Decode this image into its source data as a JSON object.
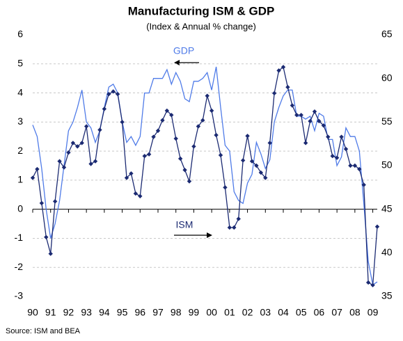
{
  "chart_data": {
    "type": "line",
    "title": "Manufacturing ISM & GDP",
    "subtitle": "(Index & Annual % change)",
    "source": "Source:  ISM and BEA",
    "x": [
      1990,
      1990.25,
      1990.5,
      1990.75,
      1991,
      1991.25,
      1991.5,
      1991.75,
      1992,
      1992.25,
      1992.5,
      1992.75,
      1993,
      1993.25,
      1993.5,
      1993.75,
      1994,
      1994.25,
      1994.5,
      1994.75,
      1995,
      1995.25,
      1995.5,
      1995.75,
      1996,
      1996.25,
      1996.5,
      1996.75,
      1997,
      1997.25,
      1997.5,
      1997.75,
      1998,
      1998.25,
      1998.5,
      1998.75,
      1999,
      1999.25,
      1999.5,
      1999.75,
      2000,
      2000.25,
      2000.5,
      2000.75,
      2001,
      2001.25,
      2001.5,
      2001.75,
      2002,
      2002.25,
      2002.5,
      2002.75,
      2003,
      2003.25,
      2003.5,
      2003.75,
      2004,
      2004.25,
      2004.5,
      2004.75,
      2005,
      2005.25,
      2005.5,
      2005.75,
      2006,
      2006.25,
      2006.5,
      2006.75,
      2007,
      2007.25,
      2007.5,
      2007.75,
      2008,
      2008.25,
      2008.5,
      2008.75,
      2009,
      2009.25
    ],
    "xlim": [
      1990,
      2009.25
    ],
    "xticks": [
      {
        "value": 1990,
        "label": "90"
      },
      {
        "value": 1991,
        "label": "91"
      },
      {
        "value": 1992,
        "label": "92"
      },
      {
        "value": 1993,
        "label": "93"
      },
      {
        "value": 1994,
        "label": "94"
      },
      {
        "value": 1995,
        "label": "95"
      },
      {
        "value": 1996,
        "label": "96"
      },
      {
        "value": 1997,
        "label": "97"
      },
      {
        "value": 1998,
        "label": "98"
      },
      {
        "value": 1999,
        "label": "99"
      },
      {
        "value": 2000,
        "label": "00"
      },
      {
        "value": 2001,
        "label": "01"
      },
      {
        "value": 2002,
        "label": "02"
      },
      {
        "value": 2003,
        "label": "03"
      },
      {
        "value": 2004,
        "label": "04"
      },
      {
        "value": 2005,
        "label": "05"
      },
      {
        "value": 2006,
        "label": "06"
      },
      {
        "value": 2007,
        "label": "07"
      },
      {
        "value": 2008,
        "label": "08"
      },
      {
        "value": 2009,
        "label": "09"
      }
    ],
    "ylim": [
      -3,
      6
    ],
    "yticks": [
      -3,
      -2,
      -1,
      0,
      1,
      2,
      3,
      4,
      5,
      6
    ],
    "y2lim": [
      35,
      65
    ],
    "y2ticks": [
      35,
      40,
      45,
      50,
      55,
      60,
      65
    ],
    "grid": true,
    "series": [
      {
        "name": "GDP",
        "color": "#4f7be8",
        "values": [
          2.9,
          2.5,
          1.4,
          0.0,
          -1.0,
          -0.5,
          0.3,
          1.5,
          2.7,
          3.0,
          3.5,
          4.1,
          3.0,
          2.8,
          2.3,
          2.7,
          3.5,
          4.2,
          4.3,
          4.0,
          3.0,
          2.3,
          2.5,
          2.2,
          2.5,
          4.0,
          4.0,
          4.5,
          4.5,
          4.5,
          4.8,
          4.3,
          4.7,
          4.4,
          3.8,
          3.7,
          4.4,
          4.4,
          4.5,
          4.7,
          4.1,
          4.9,
          3.5,
          2.2,
          2.0,
          0.6,
          0.3,
          0.2,
          0.9,
          1.2,
          2.3,
          1.9,
          1.4,
          1.7,
          3.0,
          3.5,
          3.9,
          4.1,
          4.1,
          3.2,
          3.2,
          3.1,
          3.2,
          2.7,
          3.3,
          3.2,
          2.4,
          2.4,
          1.5,
          1.8,
          2.8,
          2.5,
          2.5,
          2.0,
          0.2,
          -1.8,
          -2.6,
          -2.5
        ]
      },
      {
        "name": "ISM",
        "color": "#1b2a72",
        "axis": "y2",
        "marker": "diamond",
        "values": [
          48.6,
          49.6,
          45.7,
          41.8,
          39.9,
          45.9,
          50.5,
          49.8,
          51.5,
          52.6,
          52.2,
          52.6,
          54.5,
          50.2,
          50.5,
          54.1,
          56.5,
          58.2,
          58.5,
          58.2,
          55.0,
          48.6,
          49.1,
          46.8,
          46.5,
          51.1,
          51.3,
          53.3,
          54.0,
          55.2,
          56.3,
          55.8,
          53.1,
          50.8,
          49.5,
          48.2,
          52.2,
          54.5,
          55.2,
          58.0,
          56.3,
          53.5,
          51.2,
          47.5,
          42.9,
          42.9,
          43.9,
          50.6,
          53.4,
          50.5,
          50.0,
          49.2,
          48.6,
          52.6,
          58.3,
          60.9,
          61.3,
          59.0,
          56.9,
          55.8,
          55.8,
          52.6,
          55.1,
          56.2,
          55.1,
          54.6,
          53.3,
          51.1,
          50.9,
          53.3,
          51.9,
          50.0,
          50.0,
          49.6,
          47.8,
          36.6,
          36.3,
          43.0
        ]
      }
    ]
  }
}
